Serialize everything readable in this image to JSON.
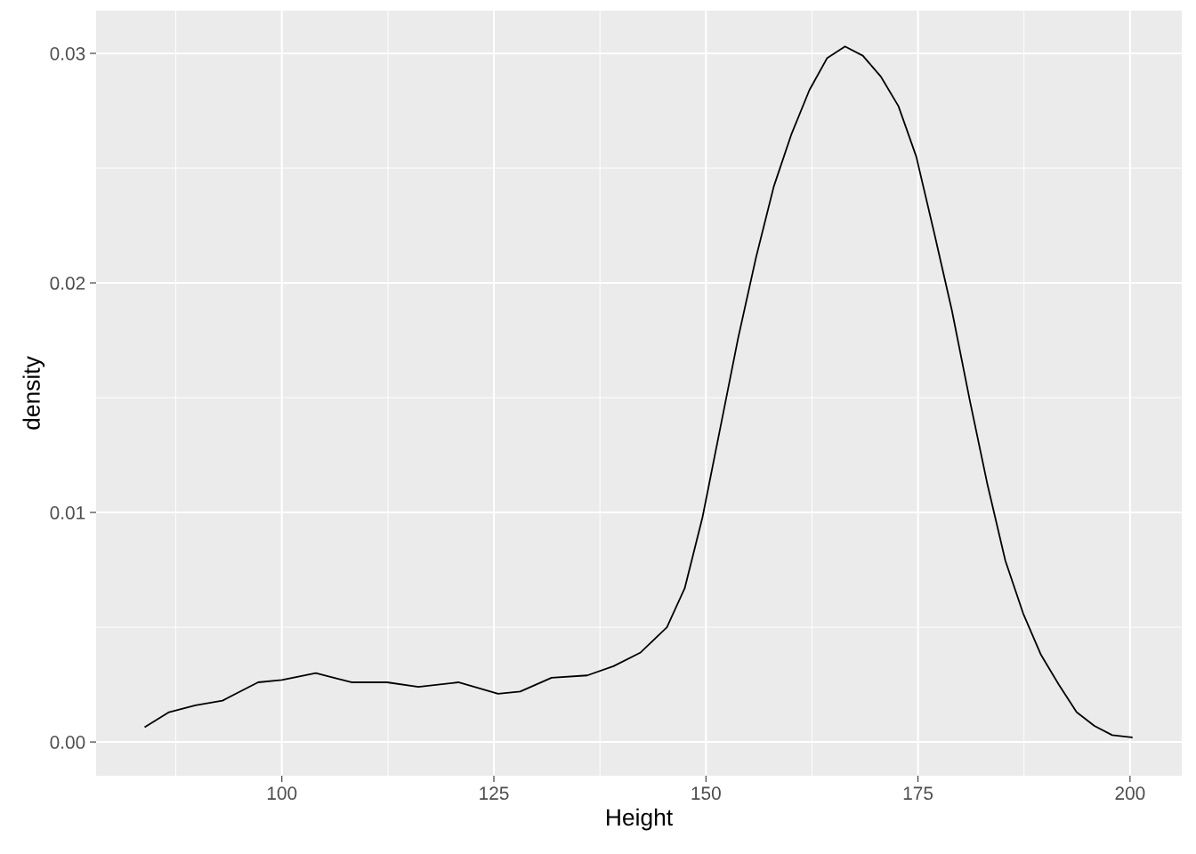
{
  "chart_data": {
    "type": "line",
    "xlabel": "Height",
    "ylabel": "density",
    "xlim": [
      78.1,
      206.1
    ],
    "ylim": [
      -0.00147,
      0.03186
    ],
    "xticks": [
      100,
      125,
      150,
      175,
      200
    ],
    "yticks": [
      {
        "value": 0,
        "label": "0.00"
      },
      {
        "value": 0.01,
        "label": "0.01"
      },
      {
        "value": 0.02,
        "label": "0.02"
      },
      {
        "value": 0.03,
        "label": "0.03"
      }
    ],
    "grid": true,
    "series": [
      {
        "color": "#000000",
        "x": [
          83.9,
          86.7,
          89.8,
          93.0,
          95.1,
          97.2,
          100,
          104,
          108.2,
          112.4,
          116.1,
          120.8,
          125.5,
          128.1,
          131.8,
          136.0,
          139.1,
          142.3,
          145.4,
          147.5,
          149.6,
          151.7,
          153.8,
          155.9,
          158.0,
          160.1,
          162.2,
          164.3,
          166.4,
          168.5,
          170.6,
          172.7,
          174.8,
          176.9,
          179.0,
          181.1,
          183.2,
          185.3,
          187.4,
          189.5,
          191.6,
          193.7,
          195.8,
          197.9,
          200.2
        ],
        "values": [
          0.00066,
          0.0013,
          0.0016,
          0.0018,
          0.0022,
          0.0026,
          0.0027,
          0.003,
          0.0026,
          0.0026,
          0.0024,
          0.0026,
          0.0021,
          0.0022,
          0.0028,
          0.0029,
          0.0033,
          0.0039,
          0.005,
          0.0067,
          0.0098,
          0.0137,
          0.0176,
          0.0211,
          0.0242,
          0.0265,
          0.0284,
          0.0298,
          0.0303,
          0.0299,
          0.029,
          0.0277,
          0.0255,
          0.0222,
          0.0188,
          0.0149,
          0.0112,
          0.0079,
          0.0056,
          0.0038,
          0.0025,
          0.0013,
          0.0007,
          0.0003,
          0.0002
        ]
      }
    ]
  }
}
